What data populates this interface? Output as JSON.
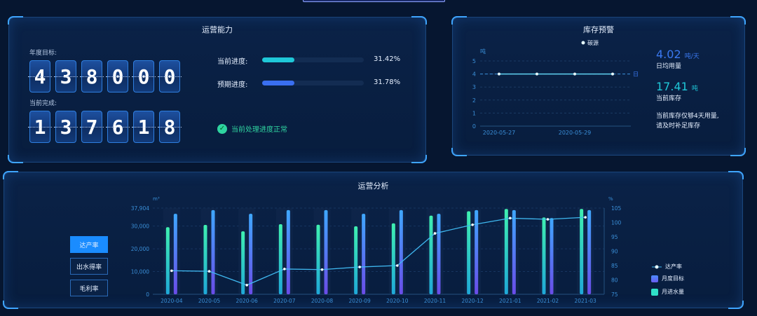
{
  "capability": {
    "title": "运营能力",
    "annual_target_label": "年度目标:",
    "annual_target_digits": [
      "4",
      "3",
      "8",
      "0",
      "0",
      "0"
    ],
    "current_done_label": "当前完成:",
    "current_done_digits": [
      "1",
      "3",
      "7",
      "6",
      "1",
      "8"
    ],
    "progress": [
      {
        "label": "当前进度:",
        "value": "31.42%",
        "fraction": 0.3142,
        "color": "#1fc8d8"
      },
      {
        "label": "预期进度:",
        "value": "31.78%",
        "fraction": 0.3178,
        "color": "#3a6ff0"
      }
    ],
    "status_text": "当前处理进度正常",
    "status_icon": "check-circle-icon"
  },
  "stock": {
    "title": "库存预警",
    "legend": "碳源",
    "y_unit": "吨",
    "mark_line_label": "日均值",
    "chart_data": {
      "type": "line",
      "x": [
        "2020-05-27",
        "2020-05-28",
        "2020-05-29",
        "2020-05-30"
      ],
      "x_tick_labels": [
        "2020-05-27",
        "2020-05-29"
      ],
      "series": [
        {
          "name": "碳源",
          "values": [
            4,
            4,
            4,
            4
          ]
        }
      ],
      "ylim": [
        0,
        5
      ],
      "y_ticks": [
        "0",
        "1",
        "2",
        "3",
        "4",
        "5"
      ],
      "mark_line": 4,
      "ylabel": "吨"
    },
    "daily_value": "4.02",
    "daily_unit": "吨/天",
    "daily_label": "日均用量",
    "stock_value": "17.41",
    "stock_unit": "吨",
    "stock_label": "当前库存",
    "warning_line1": "当前库存仅够4天用量,",
    "warning_line2": "请及时补足库存"
  },
  "analysis": {
    "title": "运营分析",
    "tabs": [
      {
        "label": "达产率",
        "active": true
      },
      {
        "label": "出水得率",
        "active": false
      },
      {
        "label": "毛利率",
        "active": false
      }
    ],
    "chart_data": {
      "type": "bar",
      "categories": [
        "2020-04",
        "2020-05",
        "2020-06",
        "2020-07",
        "2020-08",
        "2020-09",
        "2020-10",
        "2020-11",
        "2020-12",
        "2021-01",
        "2021-02",
        "2021-03"
      ],
      "ylabel_left": "m³",
      "ylabel_right": "%",
      "ylim_left": [
        0,
        37904
      ],
      "left_ticks": [
        "0",
        "10,000",
        "20,000",
        "30,000",
        "37,904"
      ],
      "ylim_right": [
        75,
        105
      ],
      "right_ticks": [
        "75",
        "80",
        "85",
        "90",
        "95",
        "100",
        "105"
      ],
      "series": [
        {
          "name": "月进水量",
          "type": "bar",
          "color": "#2fe0c8",
          "values": [
            29500,
            30500,
            27700,
            30800,
            30600,
            29900,
            31200,
            34600,
            36500,
            37500,
            33800,
            37500
          ]
        },
        {
          "name": "月度目标",
          "type": "bar",
          "color": "#4a8cff",
          "values": [
            35400,
            37000,
            35400,
            37000,
            37000,
            35400,
            37000,
            35400,
            37000,
            37000,
            33500,
            37000
          ]
        },
        {
          "name": "达产率",
          "type": "line",
          "axis": "right",
          "color": "#3fb8f0",
          "values": [
            83.2,
            83.0,
            78.2,
            83.8,
            83.6,
            84.5,
            85.0,
            96.2,
            99.2,
            101.5,
            101.1,
            101.8
          ]
        }
      ],
      "legend": [
        "达产率",
        "月度目标",
        "月进水量"
      ]
    }
  }
}
